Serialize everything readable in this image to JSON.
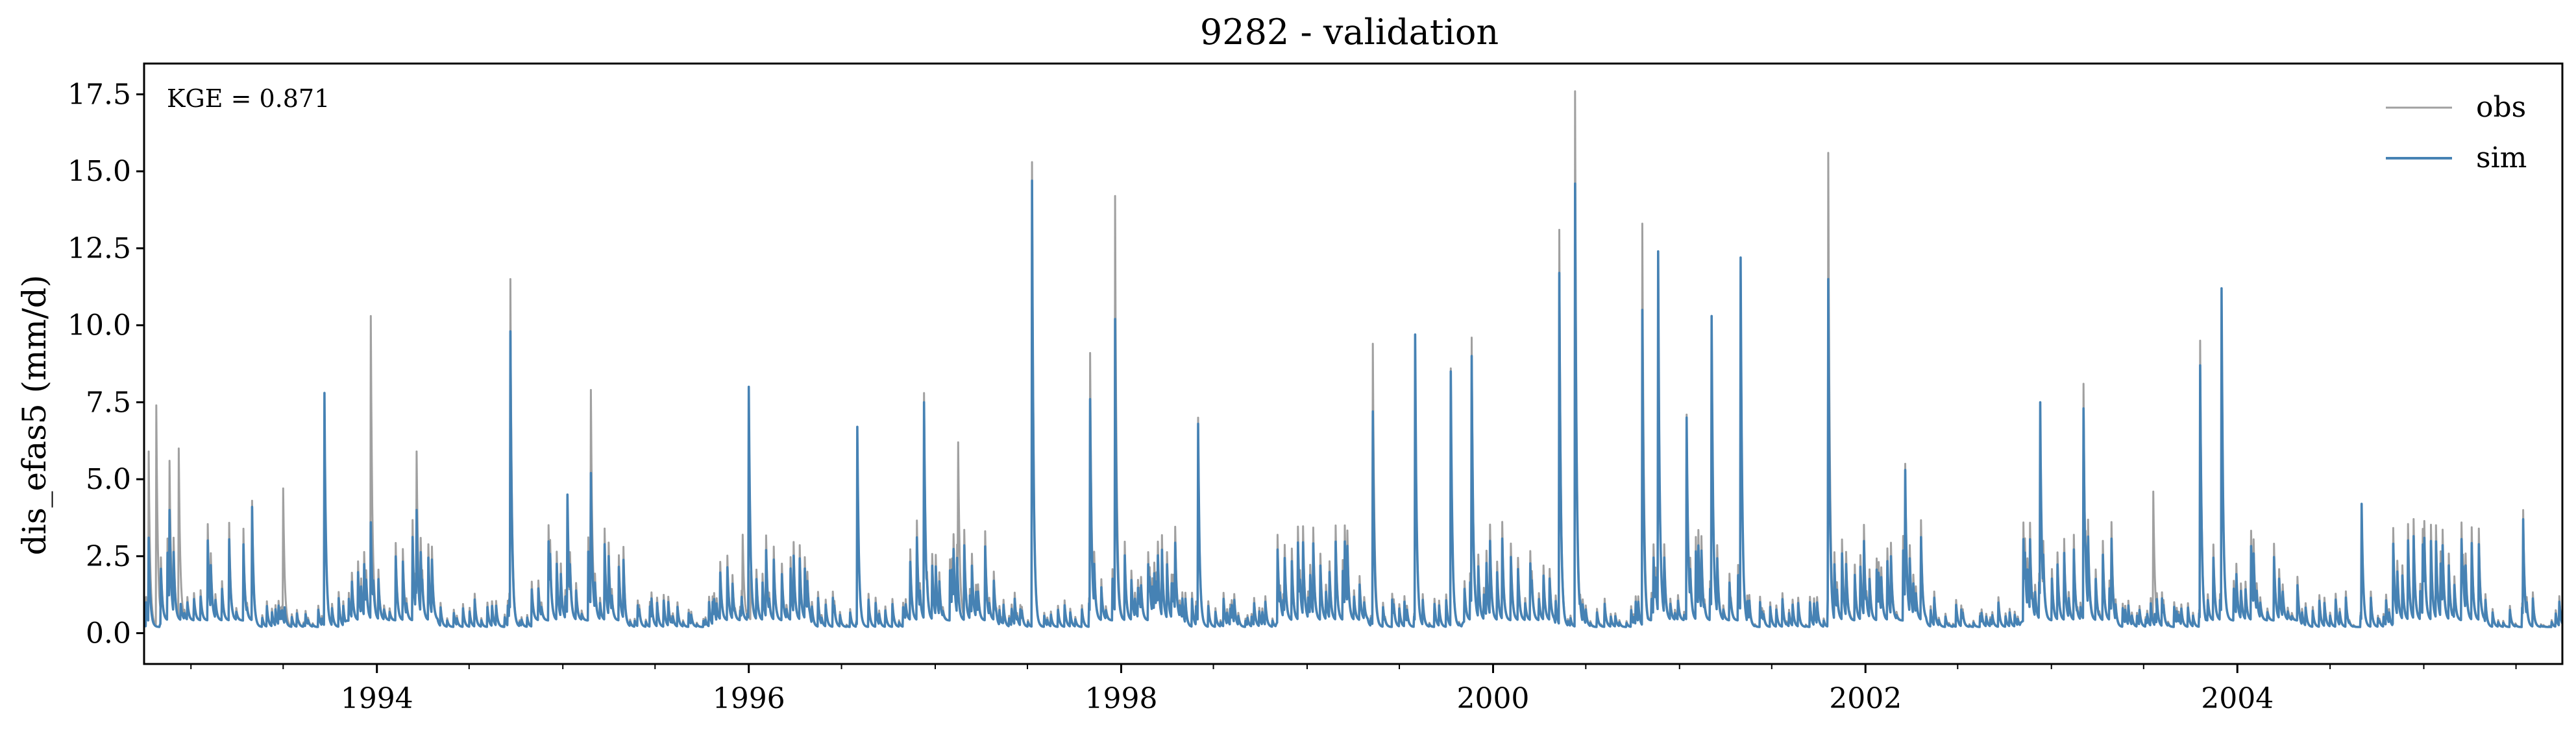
{
  "chart_data": {
    "type": "line",
    "title": "9282 - validation",
    "ylabel": "dis_efas5 (mm/d)",
    "xlabel": "",
    "annotation": "KGE = 0.871",
    "xlim": [
      "1992-10-01",
      "2005-09-30"
    ],
    "ylim": [
      -1.0,
      18.5
    ],
    "yticks": [
      "0.0",
      "2.5",
      "5.0",
      "7.5",
      "10.0",
      "12.5",
      "15.0",
      "17.5"
    ],
    "xticks": [
      "1994",
      "1996",
      "1998",
      "2000",
      "2002",
      "2004"
    ],
    "legend": {
      "position": "top-right",
      "entries": [
        "obs",
        "sim"
      ]
    },
    "colors": {
      "obs": "#a0a0a0",
      "sim": "#4682b4"
    },
    "series": [
      {
        "name": "obs",
        "peaks": [
          [
            "1992-10-10",
            5.9
          ],
          [
            "1992-10-25",
            7.4
          ],
          [
            "1992-11-20",
            5.6
          ],
          [
            "1992-12-08",
            6.0
          ],
          [
            "1993-05-01",
            4.3
          ],
          [
            "1993-07-01",
            4.7
          ],
          [
            "1993-09-20",
            7.5
          ],
          [
            "1993-12-20",
            10.3
          ],
          [
            "1994-03-20",
            5.9
          ],
          [
            "1994-09-20",
            11.5
          ],
          [
            "1995-01-10",
            4.2
          ],
          [
            "1995-02-25",
            7.9
          ],
          [
            "1995-12-20",
            3.2
          ],
          [
            "1996-08-01",
            6.6
          ],
          [
            "1996-12-10",
            7.8
          ],
          [
            "1997-02-15",
            6.2
          ],
          [
            "1997-07-10",
            15.3
          ],
          [
            "1997-11-01",
            9.1
          ],
          [
            "1997-12-20",
            14.2
          ],
          [
            "1998-06-01",
            7.0
          ],
          [
            "1999-05-10",
            9.4
          ],
          [
            "1999-08-01",
            9.6
          ],
          [
            "1999-10-10",
            8.6
          ],
          [
            "1999-11-20",
            9.6
          ],
          [
            "2000-05-10",
            13.1
          ],
          [
            "2000-06-10",
            17.6
          ],
          [
            "2000-10-20",
            13.3
          ],
          [
            "2000-11-20",
            12.4
          ],
          [
            "2001-01-15",
            7.1
          ],
          [
            "2001-03-05",
            10.3
          ],
          [
            "2001-05-01",
            12.1
          ],
          [
            "2001-10-20",
            15.6
          ],
          [
            "2002-03-20",
            5.5
          ],
          [
            "2002-12-10",
            7.0
          ],
          [
            "2003-03-05",
            8.1
          ],
          [
            "2003-07-20",
            4.6
          ],
          [
            "2003-10-20",
            9.5
          ],
          [
            "2003-12-01",
            11.1
          ],
          [
            "2004-09-01",
            4.2
          ],
          [
            "2005-07-15",
            4.0
          ]
        ]
      },
      {
        "name": "sim",
        "peaks": [
          [
            "1992-10-10",
            3.1
          ],
          [
            "1992-11-20",
            4.0
          ],
          [
            "1993-05-01",
            4.1
          ],
          [
            "1993-09-20",
            7.8
          ],
          [
            "1993-12-20",
            3.6
          ],
          [
            "1994-03-20",
            4.0
          ],
          [
            "1994-09-20",
            9.8
          ],
          [
            "1995-01-10",
            4.5
          ],
          [
            "1995-02-25",
            5.2
          ],
          [
            "1996-01-01",
            8.0
          ],
          [
            "1996-08-01",
            6.7
          ],
          [
            "1996-12-10",
            7.5
          ],
          [
            "1997-07-10",
            14.7
          ],
          [
            "1997-11-01",
            7.6
          ],
          [
            "1997-12-20",
            10.2
          ],
          [
            "1998-06-01",
            6.8
          ],
          [
            "1999-05-10",
            7.2
          ],
          [
            "1999-08-01",
            9.7
          ],
          [
            "1999-10-10",
            8.5
          ],
          [
            "1999-11-20",
            9.0
          ],
          [
            "2000-05-10",
            11.7
          ],
          [
            "2000-06-10",
            14.6
          ],
          [
            "2000-10-20",
            10.5
          ],
          [
            "2000-11-20",
            12.4
          ],
          [
            "2001-01-15",
            7.0
          ],
          [
            "2001-03-05",
            10.3
          ],
          [
            "2001-05-01",
            12.2
          ],
          [
            "2001-10-20",
            11.5
          ],
          [
            "2002-03-20",
            5.3
          ],
          [
            "2002-12-10",
            7.5
          ],
          [
            "2003-03-05",
            7.3
          ],
          [
            "2003-10-20",
            8.7
          ],
          [
            "2003-12-01",
            11.2
          ],
          [
            "2004-09-01",
            4.2
          ],
          [
            "2005-07-15",
            3.7
          ]
        ]
      }
    ]
  }
}
